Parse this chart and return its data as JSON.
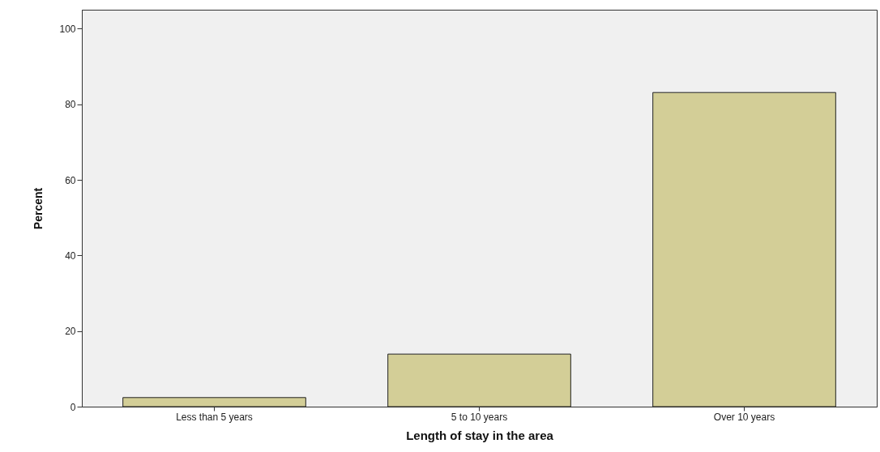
{
  "chart_data": {
    "type": "bar",
    "xlabel": "Length of stay in the area",
    "ylabel": "Percent",
    "categories": [
      "Less than 5 years",
      "5 to 10 years",
      "Over 10 years"
    ],
    "values": [
      2.4,
      13.9,
      83.1
    ],
    "color": "#d3ce97",
    "ylim": [
      0,
      105
    ],
    "yticks": [
      0,
      20,
      40,
      60,
      80,
      100
    ],
    "grid": false
  }
}
